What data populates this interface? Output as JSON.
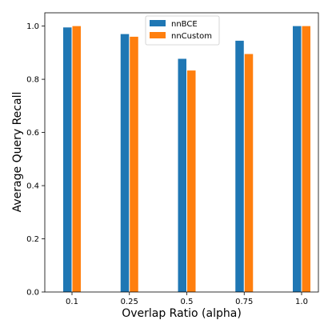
{
  "chart_data": {
    "type": "bar",
    "categories": [
      "0.1",
      "0.25",
      "0.5",
      "0.75",
      "1.0"
    ],
    "series": [
      {
        "name": "nnBCE",
        "color": "#1f77b4",
        "values": [
          0.995,
          0.97,
          0.877,
          0.945,
          1.0
        ]
      },
      {
        "name": "nnCustom",
        "color": "#ff7f0e",
        "values": [
          1.0,
          0.96,
          0.833,
          0.895,
          1.0
        ]
      }
    ],
    "title": "",
    "xlabel": "Overlap Ratio (alpha)",
    "ylabel": "Average Query Recall",
    "ylim": [
      0,
      1.05
    ],
    "yticks": [
      "0.0",
      "0.2",
      "0.4",
      "0.6",
      "0.8",
      "1.0"
    ],
    "legend": "top-center",
    "grid": false
  }
}
